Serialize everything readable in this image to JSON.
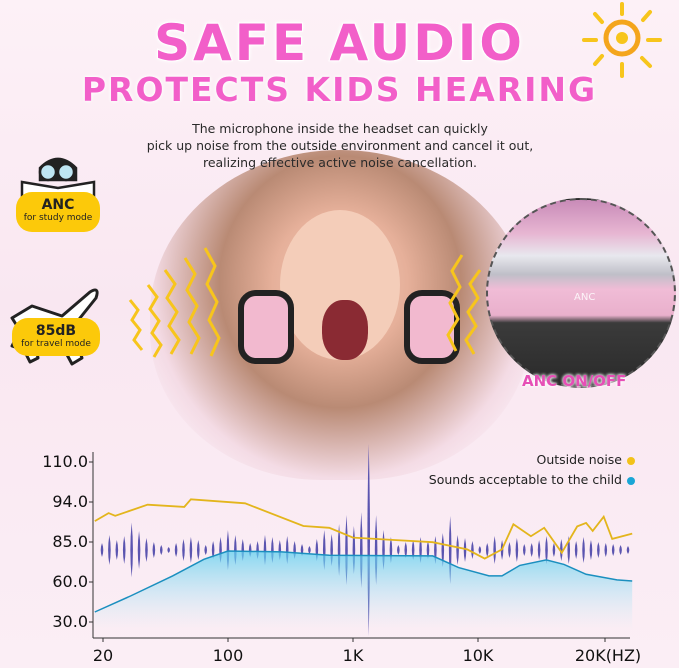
{
  "header": {
    "title_line1": "SAFE AUDIO",
    "title_line2": "PROTECTS KIDS HEARING",
    "description": [
      "The microphone inside the headset can quickly",
      "pick up noise from the outside environment and cancel it out,",
      "realizing effective active noise cancellation."
    ]
  },
  "badges": [
    {
      "title": "ANC",
      "subtitle": "for study mode",
      "icon": "reading-kid-icon"
    },
    {
      "title": "85dB",
      "subtitle": "for travel mode",
      "icon": "airplane-icon"
    }
  ],
  "inset": {
    "button_label": "ANC",
    "caption": "ANC ON/OFF"
  },
  "colors": {
    "title": "#f25fc9",
    "badge": "#fcc90a",
    "outside_noise": "#e6b81a",
    "acceptable": "#1aa6d6",
    "waveform": "#5b55b0"
  },
  "chart_data": {
    "type": "line",
    "xlabel": "",
    "ylabel": "",
    "x_ticks": [
      "20",
      "100",
      "1K",
      "10K",
      "20K(HZ)"
    ],
    "y_ticks": [
      "110.0",
      "94.0",
      "85.0",
      "60.0",
      "30.0"
    ],
    "legend_placement": "top-right",
    "grid": false,
    "series": [
      {
        "name": "Outside noise",
        "x": [
          18,
          21.5,
          23.4,
          35.5,
          57,
          62,
          137,
          401,
          646,
          1000,
          4345,
          8200,
          10370,
          11400,
          12130,
          13350,
          14350,
          15800,
          17180,
          18040,
          18700,
          19860,
          20800,
          23200
        ],
        "y": [
          89.7,
          91.5,
          90.9,
          93.4,
          92.9,
          95.1,
          93.7,
          88.6,
          88.2,
          86.0,
          84.9,
          80.4,
          74.6,
          80.4,
          89.0,
          86.3,
          88.2,
          78.3,
          88.5,
          89.3,
          87.5,
          90.7,
          85.7,
          86.9
        ]
      },
      {
        "name": "Sounds acceptable to the child",
        "x": [
          18,
          28.5,
          49,
          73.3,
          100,
          270,
          646,
          4345,
          7000,
          10620,
          11400,
          12560,
          14520,
          15990,
          18040,
          21340,
          23200
        ],
        "y": [
          37.5,
          49.5,
          63.8,
          74.2,
          79.4,
          78.8,
          76.7,
          76.3,
          69.0,
          63.8,
          63.8,
          70.4,
          73.8,
          71.0,
          64.8,
          61.3,
          60.6
        ]
      }
    ]
  }
}
